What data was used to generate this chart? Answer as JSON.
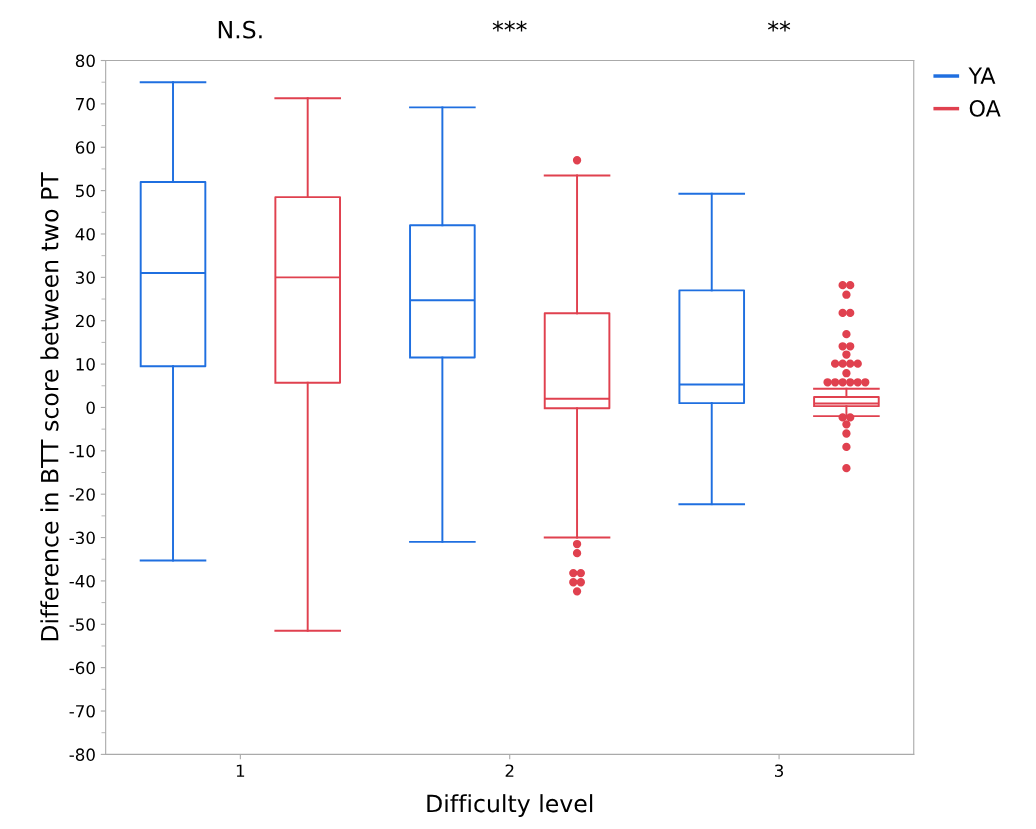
{
  "chart_data": {
    "type": "box",
    "xlabel": "Difficulty level",
    "ylabel": "Difference in BTT score between two PT",
    "categories": [
      "1",
      "2",
      "3"
    ],
    "series": [
      {
        "name": "YA",
        "color": "#1f6fe0",
        "boxes": [
          {
            "low": -35.3,
            "q1": 9.5,
            "median": 31,
            "q3": 52,
            "high": 75
          },
          {
            "low": -31,
            "q1": 11.5,
            "median": 24.7,
            "q3": 42,
            "high": 69.2
          },
          {
            "low": -22.3,
            "q1": 1,
            "median": 5.3,
            "q3": 27,
            "high": 49.3
          }
        ]
      },
      {
        "name": "OA",
        "color": "#e0414f",
        "boxes": [
          {
            "low": -51.5,
            "q1": 5.7,
            "median": 30,
            "q3": 48.5,
            "high": 71.3
          },
          {
            "low": -30,
            "q1": -0.2,
            "median": 2,
            "q3": 21.7,
            "high": 53.5,
            "outliers": [
              57,
              -31.5,
              -33.6,
              -38.2,
              -38.2,
              -40.3,
              -40.3,
              -42.4
            ]
          },
          {
            "low": -2,
            "q1": 0.3,
            "median": 0.9,
            "q3": 2.4,
            "high": 4.3,
            "outliers": [
              28.2,
              28.2,
              26,
              21.8,
              21.8,
              16.9,
              14.1,
              14.1,
              12.2,
              10.1,
              10.1,
              10.1,
              10.1,
              7.9,
              5.8,
              5.8,
              5.8,
              5.8,
              5.8,
              5.8,
              -2.3,
              -2.3,
              -3.9,
              -6,
              -9.1,
              -14
            ]
          }
        ]
      }
    ],
    "ylim": [
      -80,
      80
    ],
    "yticks": [
      -80,
      -70,
      -60,
      -50,
      -40,
      -30,
      -20,
      -10,
      0,
      10,
      20,
      30,
      40,
      50,
      60,
      70,
      80
    ],
    "annotations": [
      "N.S.",
      "***",
      "**"
    ],
    "legend": "top right",
    "grid": false
  }
}
